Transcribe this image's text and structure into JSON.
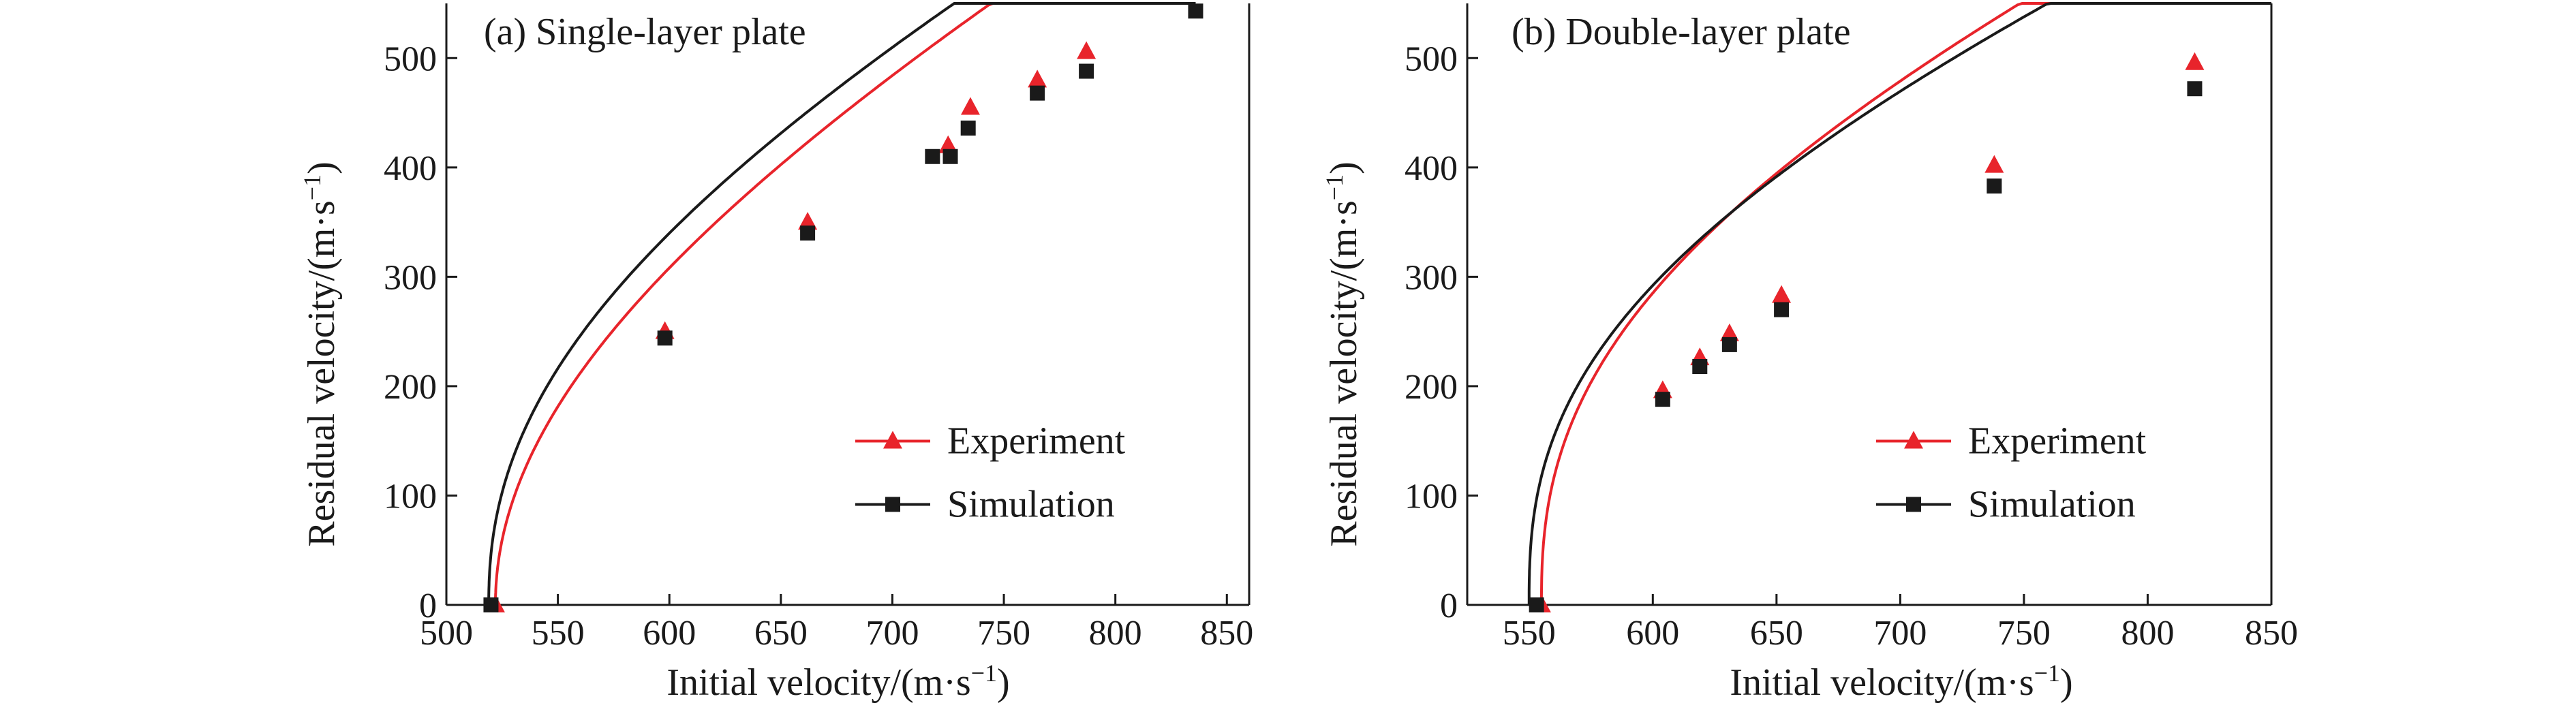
{
  "colors": {
    "experiment": "#e8242b",
    "simulation": "#1a1a1a",
    "axis": "#1a1a1a"
  },
  "chart_data": [
    {
      "type": "line",
      "title": "(a) Single-layer plate",
      "xlabel": "Initial velocity/(m·s⁻¹)",
      "ylabel": "Residual velocity/(m·s⁻¹)",
      "xlim": [
        500,
        860
      ],
      "ylim": [
        0,
        550
      ],
      "xticks": [
        500,
        550,
        600,
        650,
        700,
        750,
        800,
        850
      ],
      "yticks": [
        0,
        100,
        200,
        300,
        400,
        500
      ],
      "legend": "bottom-right",
      "series": [
        {
          "name": "Experiment",
          "color": "#e8242b",
          "marker": "triangle",
          "points": [
            [
              522,
              0
            ],
            [
              598,
              250
            ],
            [
              662,
              350
            ],
            [
              725,
              420
            ],
            [
              735,
              455
            ],
            [
              765,
              480
            ],
            [
              787,
              506
            ]
          ],
          "curve": {
            "v0": 522,
            "a": 1.03,
            "p": 2.02,
            "xmax": 828
          }
        },
        {
          "name": "Simulation",
          "color": "#1a1a1a",
          "marker": "square",
          "points": [
            [
              520,
              0
            ],
            [
              598,
              244
            ],
            [
              662,
              340
            ],
            [
              718,
              410
            ],
            [
              726,
              410
            ],
            [
              734,
              436
            ],
            [
              765,
              468
            ],
            [
              787,
              488
            ],
            [
              836,
              543
            ]
          ],
          "curve": {
            "v0": 519,
            "a": 1.0,
            "p": 2.25,
            "xmax": 836
          }
        }
      ]
    },
    {
      "type": "line",
      "title": "(b) Double-layer plate",
      "xlabel": "Initial velocity/(m·s⁻¹)",
      "ylabel": "Residual velocity/(m·s⁻¹)",
      "xlim": [
        525,
        850
      ],
      "ylim": [
        0,
        550
      ],
      "xticks": [
        550,
        600,
        650,
        700,
        750,
        800,
        850
      ],
      "yticks": [
        0,
        100,
        200,
        300,
        400,
        500
      ],
      "legend": "bottom-right",
      "series": [
        {
          "name": "Experiment",
          "color": "#e8242b",
          "marker": "triangle",
          "points": [
            [
              555,
              0
            ],
            [
              604,
              196
            ],
            [
              619,
              226
            ],
            [
              631,
              248
            ],
            [
              652,
              283
            ],
            [
              738,
              402
            ],
            [
              819,
              496
            ]
          ],
          "curve": {
            "v0": 555,
            "a": 0.95,
            "p": 2.5,
            "xmax": 850
          }
        },
        {
          "name": "Simulation",
          "color": "#1a1a1a",
          "marker": "square",
          "points": [
            [
              553,
              0
            ],
            [
              604,
              188
            ],
            [
              619,
              218
            ],
            [
              631,
              238
            ],
            [
              652,
              270
            ],
            [
              738,
              383
            ],
            [
              819,
              472
            ]
          ],
          "curve": {
            "v0": 550,
            "a": 0.9,
            "p": 2.6,
            "xmax": 850
          }
        }
      ]
    }
  ]
}
